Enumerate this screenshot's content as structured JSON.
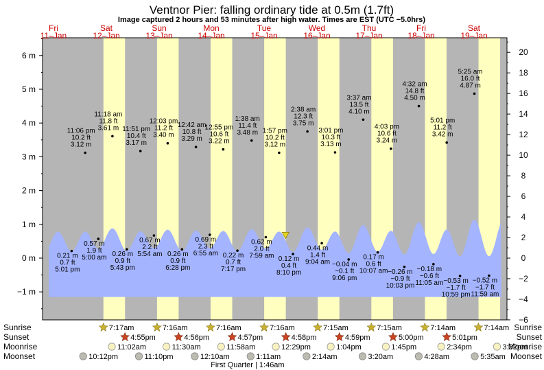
{
  "header": {
    "title": "Ventnor Pier: falling  ordinary tide at 0.5m (1.7ft)",
    "subtitle": "Image captured 2 hours and 53 minutes after high water. Times are EST (UTC −5.0hrs)"
  },
  "chart_data": {
    "type": "area",
    "days": [
      {
        "dow": "Fri",
        "date": "11–Jan"
      },
      {
        "dow": "Sat",
        "date": "12–Jan"
      },
      {
        "dow": "Sun",
        "date": "13–Jan"
      },
      {
        "dow": "Mon",
        "date": "14–Jan"
      },
      {
        "dow": "Tue",
        "date": "15–Jan"
      },
      {
        "dow": "Wed",
        "date": "16–Jan"
      },
      {
        "dow": "Thu",
        "date": "17–Jan"
      },
      {
        "dow": "Fri",
        "date": "18–Jan"
      },
      {
        "dow": "Sat",
        "date": "19–Jan"
      }
    ],
    "y_left": {
      "unit": "m",
      "range": [
        -1.5,
        6.5
      ],
      "ticks": [
        "−1 m",
        "0 m",
        "1 m",
        "2 m",
        "3 m",
        "4 m",
        "5 m",
        "6 m"
      ]
    },
    "y_right": {
      "unit": "ft",
      "range": [
        -6,
        21
      ],
      "ticks": [
        "−6 ft",
        "−4 ft",
        "−2 ft",
        "0 ft",
        "2 ft",
        "4 ft",
        "6 ft",
        "8 ft",
        "10 ft",
        "12 ft",
        "14 ft",
        "16 ft",
        "18 ft",
        "20 ft"
      ]
    },
    "daylight": {
      "sunrise_hour": 7.27,
      "sunset_hour": 16.95
    },
    "tides": [
      {
        "hour": 17.02,
        "m": "0.21 m",
        "ft": "0.7 ft",
        "time": "5:01 pm"
      },
      {
        "hour": 23.1,
        "m": "3.12 m",
        "ft": "10.2 ft",
        "time": "11:06 pm"
      },
      {
        "hour": 29.0,
        "m": "0.57 m",
        "ft": "1.9 ft",
        "time": "5:00 am"
      },
      {
        "hour": 35.3,
        "m": "3.61 m",
        "ft": "11.8 ft",
        "time": "11:18 am"
      },
      {
        "hour": 41.72,
        "m": "0.26 m",
        "ft": "0.9 ft",
        "time": "5:43 pm"
      },
      {
        "hour": 47.85,
        "m": "3.17 m",
        "ft": "10.4 ft",
        "time": "11:51 pm"
      },
      {
        "hour": 53.9,
        "m": "0.67 m",
        "ft": "2.2 ft",
        "time": "5:54 am"
      },
      {
        "hour": 60.05,
        "m": "3.40 m",
        "ft": "11.2 ft",
        "time": "12:03 pm"
      },
      {
        "hour": 66.47,
        "m": "0.26 m",
        "ft": "0.9 ft",
        "time": "6:28 pm"
      },
      {
        "hour": 72.7,
        "m": "3.29 m",
        "ft": "10.8 ft",
        "time": "12:42 am"
      },
      {
        "hour": 78.92,
        "m": "0.69 m",
        "ft": "2.3 ft",
        "time": "6:55 am"
      },
      {
        "hour": 84.92,
        "m": "3.22 m",
        "ft": "10.6 ft",
        "time": "12:55 pm"
      },
      {
        "hour": 91.28,
        "m": "0.22 m",
        "ft": "0.7 ft",
        "time": "7:17 pm"
      },
      {
        "hour": 97.63,
        "m": "3.48 m",
        "ft": "11.4 ft",
        "time": "1:38 am"
      },
      {
        "hour": 103.98,
        "m": "0.62 m",
        "ft": "2.0 ft",
        "time": "7:59 am"
      },
      {
        "hour": 109.95,
        "m": "3.12 m",
        "ft": "10.2 ft",
        "time": "1:57 pm"
      },
      {
        "hour": 116.17,
        "m": "0.12 m",
        "ft": "0.4 ft",
        "time": "8:10 pm"
      },
      {
        "hour": 122.63,
        "m": "3.75 m",
        "ft": "12.3 ft",
        "time": "2:38 am"
      },
      {
        "hour": 129.07,
        "m": "0.44 m",
        "ft": "1.4 ft",
        "time": "9:04 am"
      },
      {
        "hour": 135.02,
        "m": "3.13 m",
        "ft": "10.3 ft",
        "time": "3:01 pm"
      },
      {
        "hour": 141.1,
        "m": "−0.04 m",
        "ft": "−0.1 ft",
        "time": "9:06 pm"
      },
      {
        "hour": 147.62,
        "m": "4.10 m",
        "ft": "13.5 ft",
        "time": "3:37 am"
      },
      {
        "hour": 154.12,
        "m": "0.17 m",
        "ft": "0.6 ft",
        "time": "10:07 am"
      },
      {
        "hour": 160.05,
        "m": "3.24 m",
        "ft": "10.6 ft",
        "time": "4:03 pm"
      },
      {
        "hour": 166.05,
        "m": "−0.26 m",
        "ft": "−0.9 ft",
        "time": "10:03 pm"
      },
      {
        "hour": 172.53,
        "m": "4.50 m",
        "ft": "14.8 ft",
        "time": "4:32 am"
      },
      {
        "hour": 179.08,
        "m": "−0.18 m",
        "ft": "−0.6 ft",
        "time": "11:05 am"
      },
      {
        "hour": 185.02,
        "m": "3.42 m",
        "ft": "11.2 ft",
        "time": "5:01 pm"
      },
      {
        "hour": 190.98,
        "m": "−0.53 m",
        "ft": "−1.7 ft",
        "time": "10:59 pm"
      },
      {
        "hour": 197.42,
        "m": "4.87 m",
        "ft": "16.0 ft",
        "time": "5:25 am"
      },
      {
        "hour": 203.98,
        "m": "−0.52 m",
        "ft": "−1.7 ft",
        "time": "11:59 am"
      }
    ],
    "tide_shaded_height_m": 0.5,
    "marker": {
      "hour": 112.85,
      "m": 0.5
    },
    "row_labels": {
      "sunrise": "Sunrise",
      "sunset": "Sunset",
      "moonrise": "Moonrise",
      "moonset": "Moonset"
    },
    "sunrise": [
      {
        "hour": 31.28,
        "text": "7:17am"
      },
      {
        "hour": 55.27,
        "text": "7:16am"
      },
      {
        "hour": 79.27,
        "text": "7:16am"
      },
      {
        "hour": 103.27,
        "text": "7:16am"
      },
      {
        "hour": 127.25,
        "text": "7:15am"
      },
      {
        "hour": 151.25,
        "text": "7:15am"
      },
      {
        "hour": 175.23,
        "text": "7:14am"
      },
      {
        "hour": 199.23,
        "text": "7:14am"
      }
    ],
    "sunset": [
      {
        "hour": 40.92,
        "text": "4:55pm"
      },
      {
        "hour": 64.93,
        "text": "4:56pm"
      },
      {
        "hour": 88.95,
        "text": "4:57pm"
      },
      {
        "hour": 112.97,
        "text": "4:58pm"
      },
      {
        "hour": 136.98,
        "text": "4:59pm"
      },
      {
        "hour": 161.0,
        "text": "5:00pm"
      },
      {
        "hour": 185.02,
        "text": "5:01pm"
      }
    ],
    "moonrise": [
      {
        "hour": 35.03,
        "text": "11:02am"
      },
      {
        "hour": 59.5,
        "text": "11:30am"
      },
      {
        "hour": 83.97,
        "text": "11:58am"
      },
      {
        "hour": 108.48,
        "text": "12:29pm"
      },
      {
        "hour": 133.07,
        "text": "1:04pm"
      },
      {
        "hour": 157.75,
        "text": "1:45pm"
      },
      {
        "hour": 182.57,
        "text": "2:34pm"
      },
      {
        "hour": 207.53,
        "text": "3:32pm"
      }
    ],
    "moonset": [
      {
        "hour": 22.2,
        "text": "10:12pm"
      },
      {
        "hour": 47.17,
        "text": "11:10pm"
      },
      {
        "hour": 72.17,
        "text": "12:10am"
      },
      {
        "hour": 97.18,
        "text": "1:11am"
      },
      {
        "hour": 122.23,
        "text": "2:14am"
      },
      {
        "hour": 147.33,
        "text": "3:20am"
      },
      {
        "hour": 172.47,
        "text": "4:28am"
      },
      {
        "hour": 197.58,
        "text": "5:35am"
      }
    ],
    "moon_phase": {
      "hour": 97.77,
      "text": "First Quarter | 1:46am"
    },
    "colors": {
      "night": "#b5b5b5",
      "day": "#ffffc0",
      "water": "#a4b4ff",
      "marker": "#e8d820",
      "sunrise_star": "#c8b030",
      "sunset_star": "#cc4422",
      "moonrise_disk": "#f8f2c0",
      "moonset_disk": "#bcbcb0",
      "day_label": "#cc0000"
    }
  }
}
